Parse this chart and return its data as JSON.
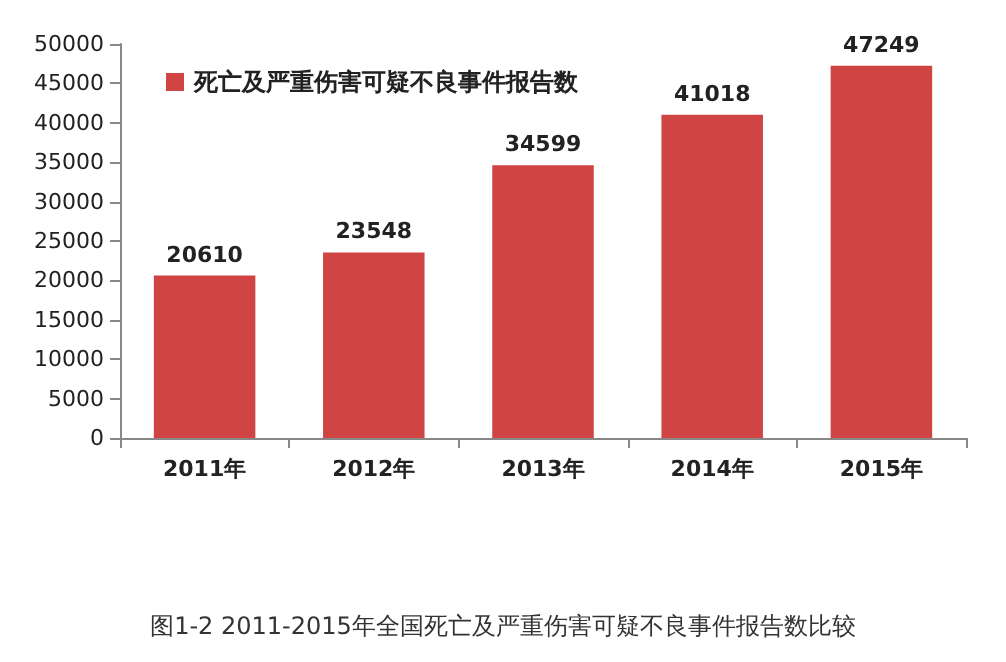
{
  "chart_data": {
    "type": "bar",
    "categories": [
      "2011年",
      "2012年",
      "2013年",
      "2014年",
      "2015年"
    ],
    "series": [
      {
        "name": "死亡及严重伤害可疑不良事件报告数",
        "color": "#d04444",
        "values": [
          20610,
          23548,
          34599,
          41018,
          47249
        ]
      }
    ],
    "ylim": [
      0,
      50000
    ],
    "yticks": [
      0,
      5000,
      10000,
      15000,
      20000,
      25000,
      30000,
      35000,
      40000,
      45000,
      50000
    ],
    "grid": false,
    "legend": "top left",
    "data_labels": true,
    "annotations": [
      "图1-2 2011-2015年全国死亡及严重伤害可疑不良事件报告数比较"
    ]
  }
}
